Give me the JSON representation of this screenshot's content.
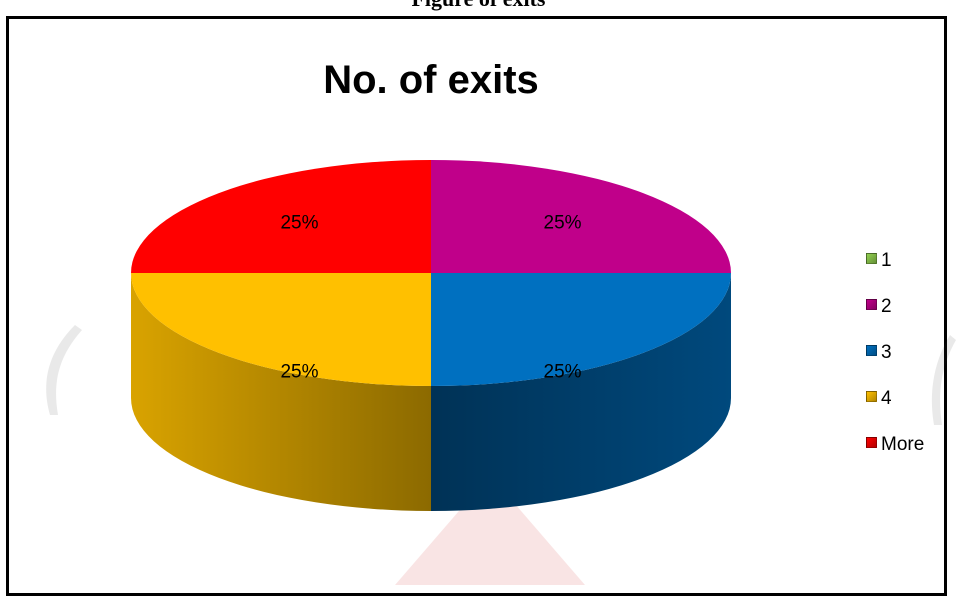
{
  "page_heading": "Figure of exits",
  "chart_data": {
    "type": "pie",
    "title": "No. of exits",
    "categories": [
      "1",
      "2",
      "3",
      "4",
      "More"
    ],
    "values": [
      0,
      25,
      25,
      25,
      25
    ],
    "data_labels": [
      "",
      "25%",
      "25%",
      "25%",
      "25%"
    ],
    "colors": [
      "#92d050",
      "#c0008a",
      "#0070c0",
      "#ffc000",
      "#ff0000"
    ],
    "legend_position": "right",
    "style": "3d"
  }
}
